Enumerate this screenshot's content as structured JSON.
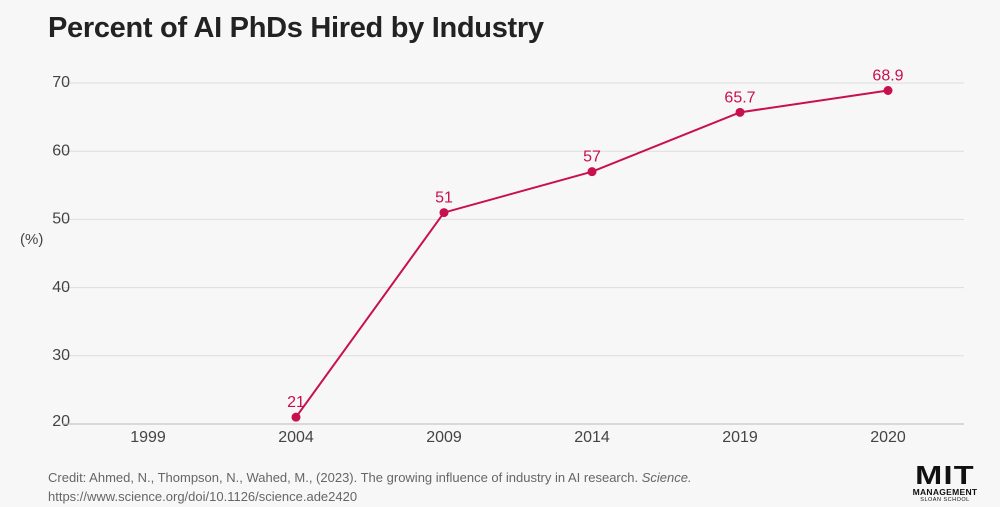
{
  "chart_data": {
    "type": "line",
    "title": "Percent of AI PhDs Hired by Industry",
    "ylabel": "(%)",
    "xlabel": "",
    "categories": [
      "1999",
      "2004",
      "2009",
      "2014",
      "2019",
      "2020"
    ],
    "series": [
      {
        "values": [
          null,
          21,
          51,
          57,
          65.7,
          68.9
        ],
        "data_labels": [
          "",
          "21",
          "51",
          "57",
          "65.7",
          "68.9"
        ]
      }
    ],
    "y_ticks": [
      20,
      30,
      40,
      50,
      60,
      70
    ],
    "ylim": [
      20,
      70
    ],
    "grid": true,
    "colors": {
      "line": "#c8104e",
      "label": "#c8104e",
      "grid": "#dddddd"
    }
  },
  "credit": {
    "text": "Credit: Ahmed, N., Thompson, N., Wahed, M., (2023). The growing influence of industry in AI research.",
    "journal": "Science.",
    "url": "https://www.science.org/doi/10.1126/science.ade2420"
  },
  "logo": {
    "mit": "MIT",
    "management": "MANAGEMENT",
    "school": "SLOAN SCHOOL"
  }
}
